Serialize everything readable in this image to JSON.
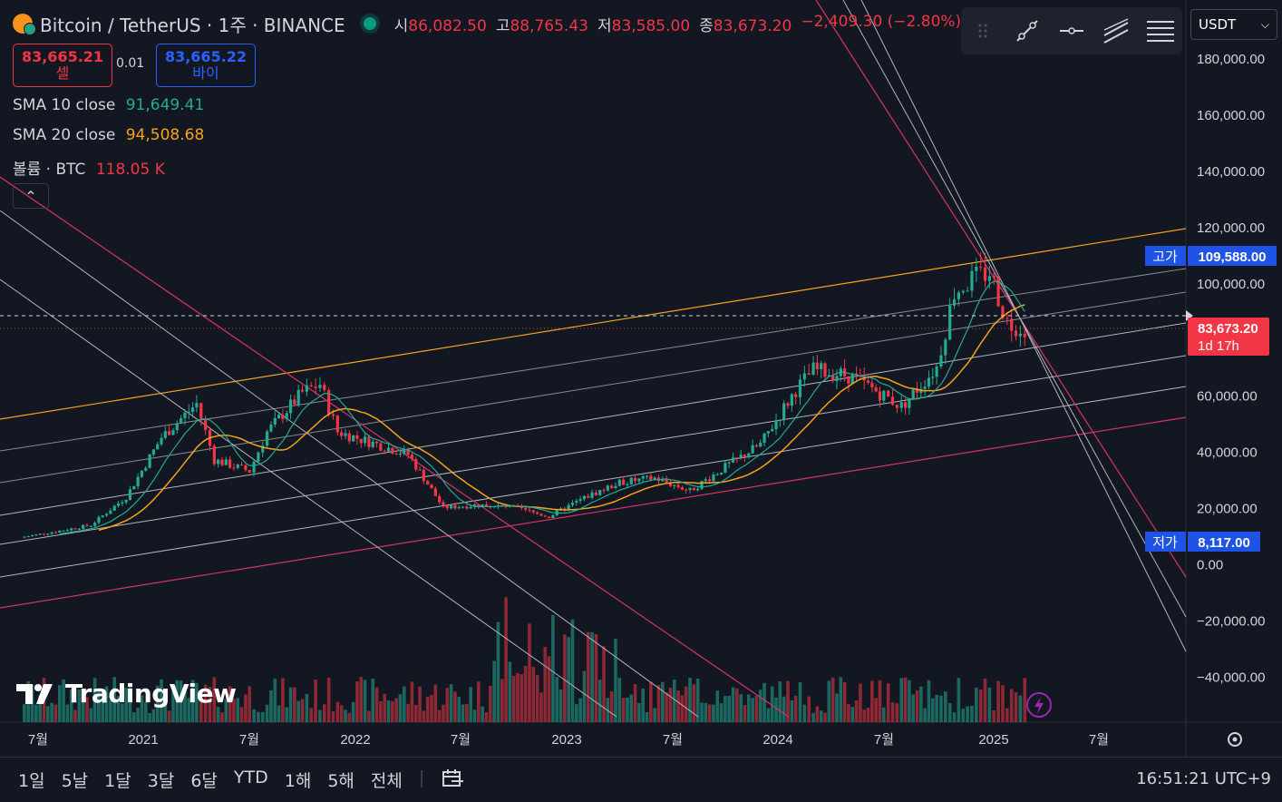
{
  "header": {
    "symbol_title": "Bitcoin / TetherUS · 1주 · BINANCE",
    "ohlc": [
      {
        "label": "시",
        "value": "86,082.50"
      },
      {
        "label": "고",
        "value": "88,765.43"
      },
      {
        "label": "저",
        "value": "83,585.00"
      },
      {
        "label": "종",
        "value": "83,673.20"
      },
      {
        "label": "",
        "value": "−2,409.30 (−2.80%)"
      }
    ]
  },
  "trade": {
    "sell_price": "83,665.21",
    "sell_label": "셀",
    "spread": "0.01",
    "buy_price": "83,665.22",
    "buy_label": "바이"
  },
  "indicators": [
    {
      "name": "SMA 10 close",
      "value": "91,649.41",
      "color": "#22ab94"
    },
    {
      "name": "SMA 20 close",
      "value": "94,508.68",
      "color": "#f7a21b"
    },
    {
      "name": "볼륨 · BTC",
      "value": "118.05 K",
      "color": "#f23645"
    }
  ],
  "currency_select": {
    "value": "USDT"
  },
  "toolbar_icons": [
    "trend-line-icon",
    "horizontal-ray-icon",
    "parallel-channel-icon",
    "fib-lines-icon"
  ],
  "price_axis": {
    "ticks": [
      "180,000.00",
      "160,000.00",
      "140,000.00",
      "120,000.00",
      "100,000.00",
      "60,000.00",
      "40,000.00",
      "20,000.00",
      "0.00",
      "−20,000.00",
      "−40,000.00"
    ],
    "high_label": "고가",
    "high_value": "109,588.00",
    "low_label": "저가",
    "low_value": "8,117.00",
    "last_price": "83,673.20",
    "countdown": "1d 17h"
  },
  "time_axis": {
    "ticks": [
      "7월",
      "2021",
      "7월",
      "2022",
      "7월",
      "2023",
      "7월",
      "2024",
      "7월",
      "2025",
      "7월"
    ]
  },
  "periods": [
    "1일",
    "5날",
    "1달",
    "3달",
    "6달",
    "YTD",
    "1해",
    "5해",
    "전체"
  ],
  "clock": "16:51:21 UTC+9",
  "brand": "TradingView",
  "colors": {
    "up": "#22ab94",
    "down": "#f23645",
    "background": "#131722",
    "sma10": "#22ab94",
    "sma20": "#f7a21b"
  },
  "chart_data": {
    "type": "candlestick",
    "symbol": "Bitcoin / TetherUS",
    "interval": "1주",
    "ylim": [
      -50000,
      190000
    ],
    "series": [
      {
        "name": "price",
        "points": [
          [
            "2020-06",
            9400
          ],
          [
            "2020-08",
            11500
          ],
          [
            "2020-10",
            13800
          ],
          [
            "2020-12",
            23800
          ],
          [
            "2021-02",
            45000
          ],
          [
            "2021-04",
            57000
          ],
          [
            "2021-05",
            37000
          ],
          [
            "2021-07",
            33000
          ],
          [
            "2021-08",
            47000
          ],
          [
            "2021-10",
            61000
          ],
          [
            "2021-11",
            64000
          ],
          [
            "2021-12",
            47000
          ],
          [
            "2022-02",
            43000
          ],
          [
            "2022-04",
            39000
          ],
          [
            "2022-06",
            20000
          ],
          [
            "2022-08",
            21000
          ],
          [
            "2022-10",
            20000
          ],
          [
            "2022-12",
            16800
          ],
          [
            "2023-02",
            23500
          ],
          [
            "2023-04",
            29000
          ],
          [
            "2023-06",
            30500
          ],
          [
            "2023-08",
            26000
          ],
          [
            "2023-10",
            34500
          ],
          [
            "2023-12",
            42500
          ],
          [
            "2024-02",
            62000
          ],
          [
            "2024-03",
            69000
          ],
          [
            "2024-05",
            67000
          ],
          [
            "2024-07",
            60000
          ],
          [
            "2024-08",
            56000
          ],
          [
            "2024-10",
            70000
          ],
          [
            "2024-11",
            97000
          ],
          [
            "2024-12",
            101000
          ],
          [
            "2025-01",
            104000
          ],
          [
            "2025-02",
            86000
          ],
          [
            "2025-03",
            83673.2
          ]
        ]
      }
    ],
    "high": 109588.0,
    "low": 8117.0,
    "last": 83673.2
  }
}
